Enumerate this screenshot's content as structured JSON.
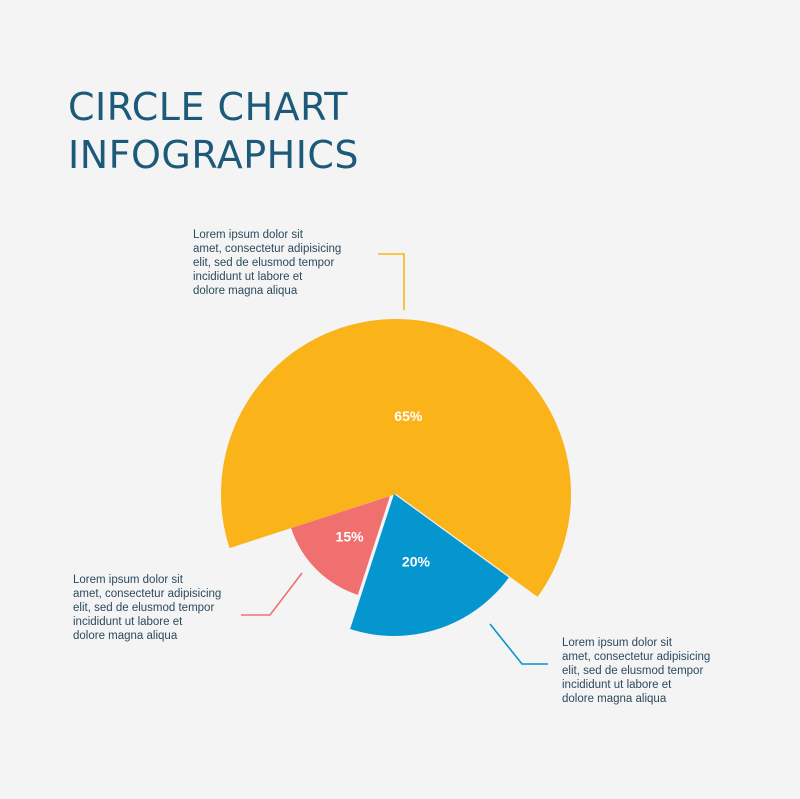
{
  "title": [
    "CIRCLE CHART",
    "INFOGRAPHICS"
  ],
  "colors": {
    "background": "#f4f4f4",
    "title": "#1d5a7a",
    "text": "#2b4a5e"
  },
  "chart_data": {
    "type": "pie",
    "slices": [
      {
        "value": 65,
        "label": "65%",
        "color": "#fbb31a"
      },
      {
        "value": 20,
        "label": "20%",
        "color": "#0596cf"
      },
      {
        "value": 15,
        "label": "15%",
        "color": "#f07070"
      }
    ],
    "annotations": [
      {
        "slice": 0,
        "lines": [
          "Lorem ipsum dolor sit",
          "amet, consectetur adipisicing",
          "elit, sed de elusmod tempor",
          "incididunt ut labore et",
          "dolore magna aliqua"
        ]
      },
      {
        "slice": 1,
        "lines": [
          "Lorem ipsum dolor sit",
          "amet, consectetur adipisicing",
          "elit, sed de elusmod tempor",
          "incididunt ut labore et",
          "dolore magna aliqua"
        ]
      },
      {
        "slice": 2,
        "lines": [
          "Lorem ipsum dolor sit",
          "amet, consectetur adipisicing",
          "elit, sed de elusmod tempor",
          "incididunt ut labore et",
          "dolore magna aliqua"
        ]
      }
    ]
  }
}
